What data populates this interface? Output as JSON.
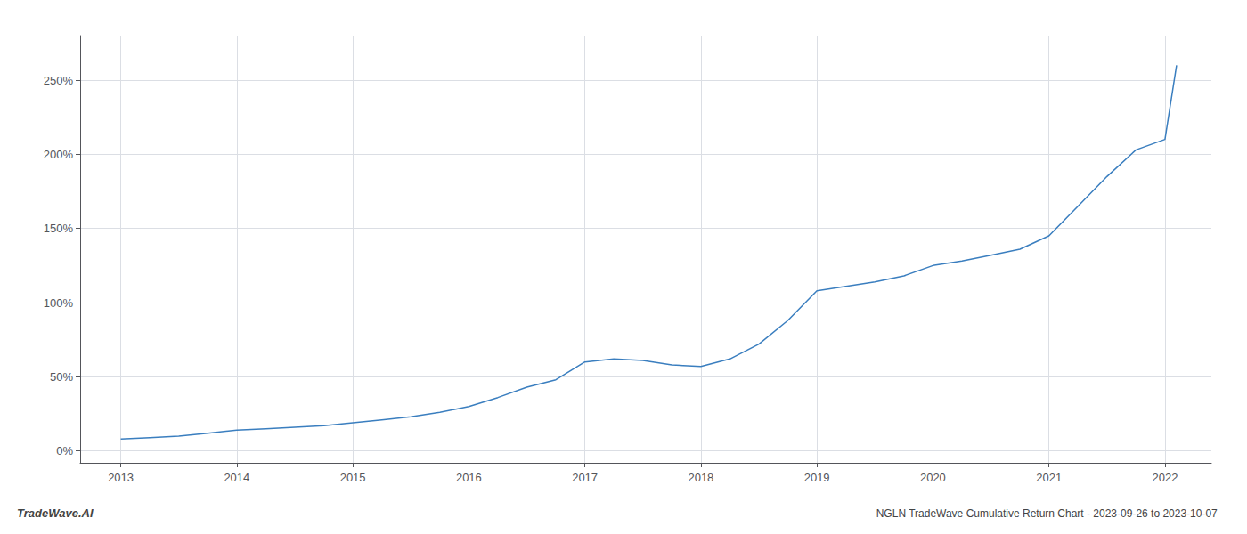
{
  "chart_data": {
    "type": "line",
    "title": "NGLN TradeWave Cumulative Return Chart - 2023-09-26 to 2023-10-07",
    "annotations": [
      "TradeWave.AI"
    ],
    "x": [
      2013.0,
      2013.25,
      2013.5,
      2013.75,
      2014.0,
      2014.25,
      2014.5,
      2014.75,
      2015.0,
      2015.25,
      2015.5,
      2015.75,
      2016.0,
      2016.25,
      2016.5,
      2016.75,
      2017.0,
      2017.25,
      2017.5,
      2017.75,
      2018.0,
      2018.25,
      2018.5,
      2018.75,
      2019.0,
      2019.25,
      2019.5,
      2019.75,
      2020.0,
      2020.25,
      2020.5,
      2020.75,
      2021.0,
      2021.25,
      2021.5,
      2021.75,
      2022.0,
      2022.1
    ],
    "values": [
      8,
      9,
      10,
      12,
      14,
      15,
      16,
      17,
      19,
      21,
      23,
      26,
      30,
      36,
      43,
      48,
      60,
      62,
      61,
      58,
      57,
      62,
      72,
      88,
      108,
      111,
      114,
      118,
      125,
      128,
      132,
      136,
      145,
      165,
      185,
      203,
      210,
      260
    ],
    "color": "#3a7ebf",
    "xlim": [
      2012.65,
      2022.4
    ],
    "xticks": [
      2013,
      2014,
      2015,
      2016,
      2017,
      2018,
      2019,
      2020,
      2021,
      2022
    ],
    "ylim": [
      -8,
      280
    ],
    "yticks": [
      {
        "value": 0,
        "label": "0%"
      },
      {
        "value": 50,
        "label": "50%"
      },
      {
        "value": 100,
        "label": "100%"
      },
      {
        "value": 150,
        "label": "150%"
      },
      {
        "value": 200,
        "label": "200%"
      },
      {
        "value": 250,
        "label": "250%"
      }
    ],
    "grid": true
  }
}
